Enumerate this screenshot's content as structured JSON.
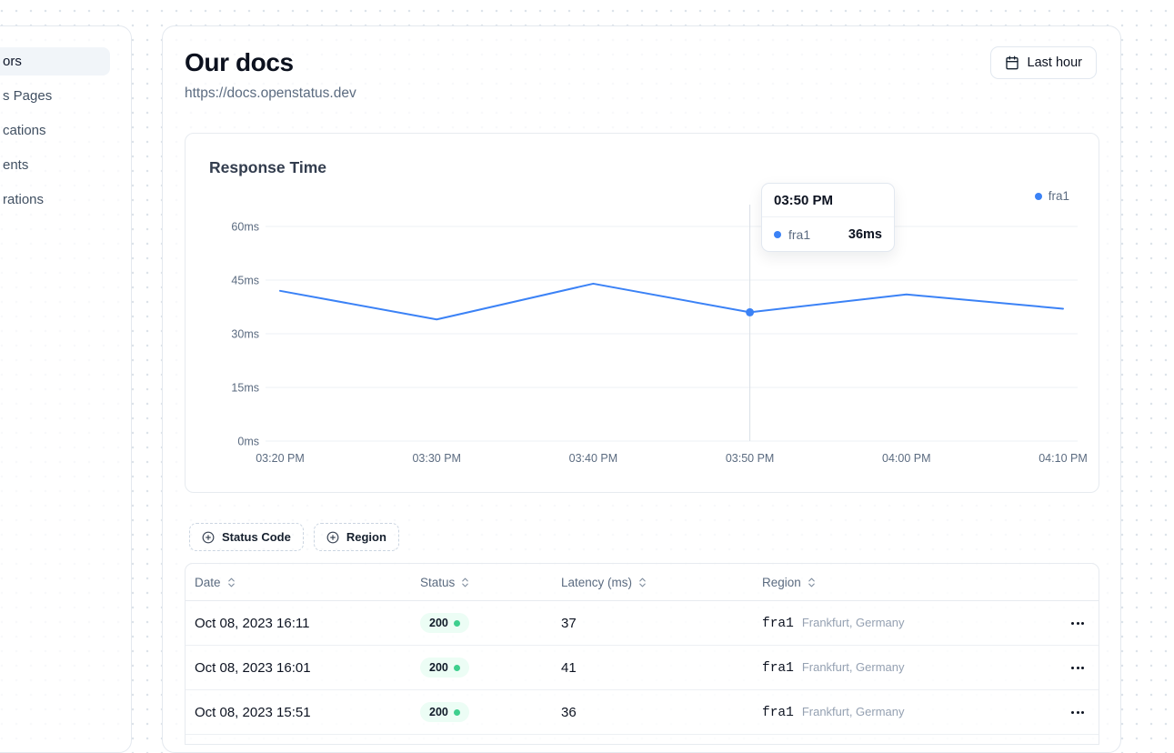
{
  "sidebar": {
    "items": [
      {
        "label": "ors",
        "active": true
      },
      {
        "label": "s Pages",
        "active": false
      },
      {
        "label": "cations",
        "active": false
      },
      {
        "label": "ents",
        "active": false
      },
      {
        "label": "rations",
        "active": false
      }
    ]
  },
  "header": {
    "title": "Our docs",
    "url": "https://docs.openstatus.dev",
    "time_range_label": "Last hour",
    "time_range_icon": "calendar-icon"
  },
  "chart_data": {
    "type": "line",
    "title": "Response Time",
    "x": [
      "03:20 PM",
      "03:30 PM",
      "03:40 PM",
      "03:50 PM",
      "04:00 PM",
      "04:10 PM"
    ],
    "series": [
      {
        "name": "fra1",
        "color": "#3b82f6",
        "values": [
          42,
          34,
          44,
          36,
          41,
          37
        ]
      }
    ],
    "ylabel": "ms",
    "ylim": [
      0,
      60
    ],
    "yticks": [
      0,
      15,
      30,
      45,
      60
    ],
    "ytick_labels": [
      "0ms",
      "15ms",
      "30ms",
      "45ms",
      "60ms"
    ],
    "grid": "horizontal",
    "legend_position": "top-right",
    "active_point": {
      "series": "fra1",
      "index": 3,
      "x": "03:50 PM",
      "value": 36
    }
  },
  "tooltip": {
    "time": "03:50 PM",
    "series": "fra1",
    "value": "36ms"
  },
  "filters": [
    {
      "label": "Status Code",
      "icon": "plus-circle-icon"
    },
    {
      "label": "Region",
      "icon": "plus-circle-icon"
    }
  ],
  "table": {
    "columns": [
      "Date",
      "Status",
      "Latency (ms)",
      "Region"
    ],
    "sort_icon": "chevrons-up-down-icon",
    "row_menu_icon": "more-horizontal-icon",
    "rows": [
      {
        "date": "Oct 08, 2023 16:11",
        "status": "200",
        "latency": "37",
        "region_code": "fra1",
        "region_name": "Frankfurt, Germany"
      },
      {
        "date": "Oct 08, 2023 16:01",
        "status": "200",
        "latency": "41",
        "region_code": "fra1",
        "region_name": "Frankfurt, Germany"
      },
      {
        "date": "Oct 08, 2023 15:51",
        "status": "200",
        "latency": "36",
        "region_code": "fra1",
        "region_name": "Frankfurt, Germany"
      }
    ]
  },
  "colors": {
    "accent_blue": "#3b82f6",
    "status_green": "#3ecf8e",
    "badge_bg": "#ecfdf5",
    "border": "#e4e9ef",
    "muted_text": "#5b6b80",
    "crosshair": "#d9dfe7",
    "gridline": "#edf1f5"
  }
}
